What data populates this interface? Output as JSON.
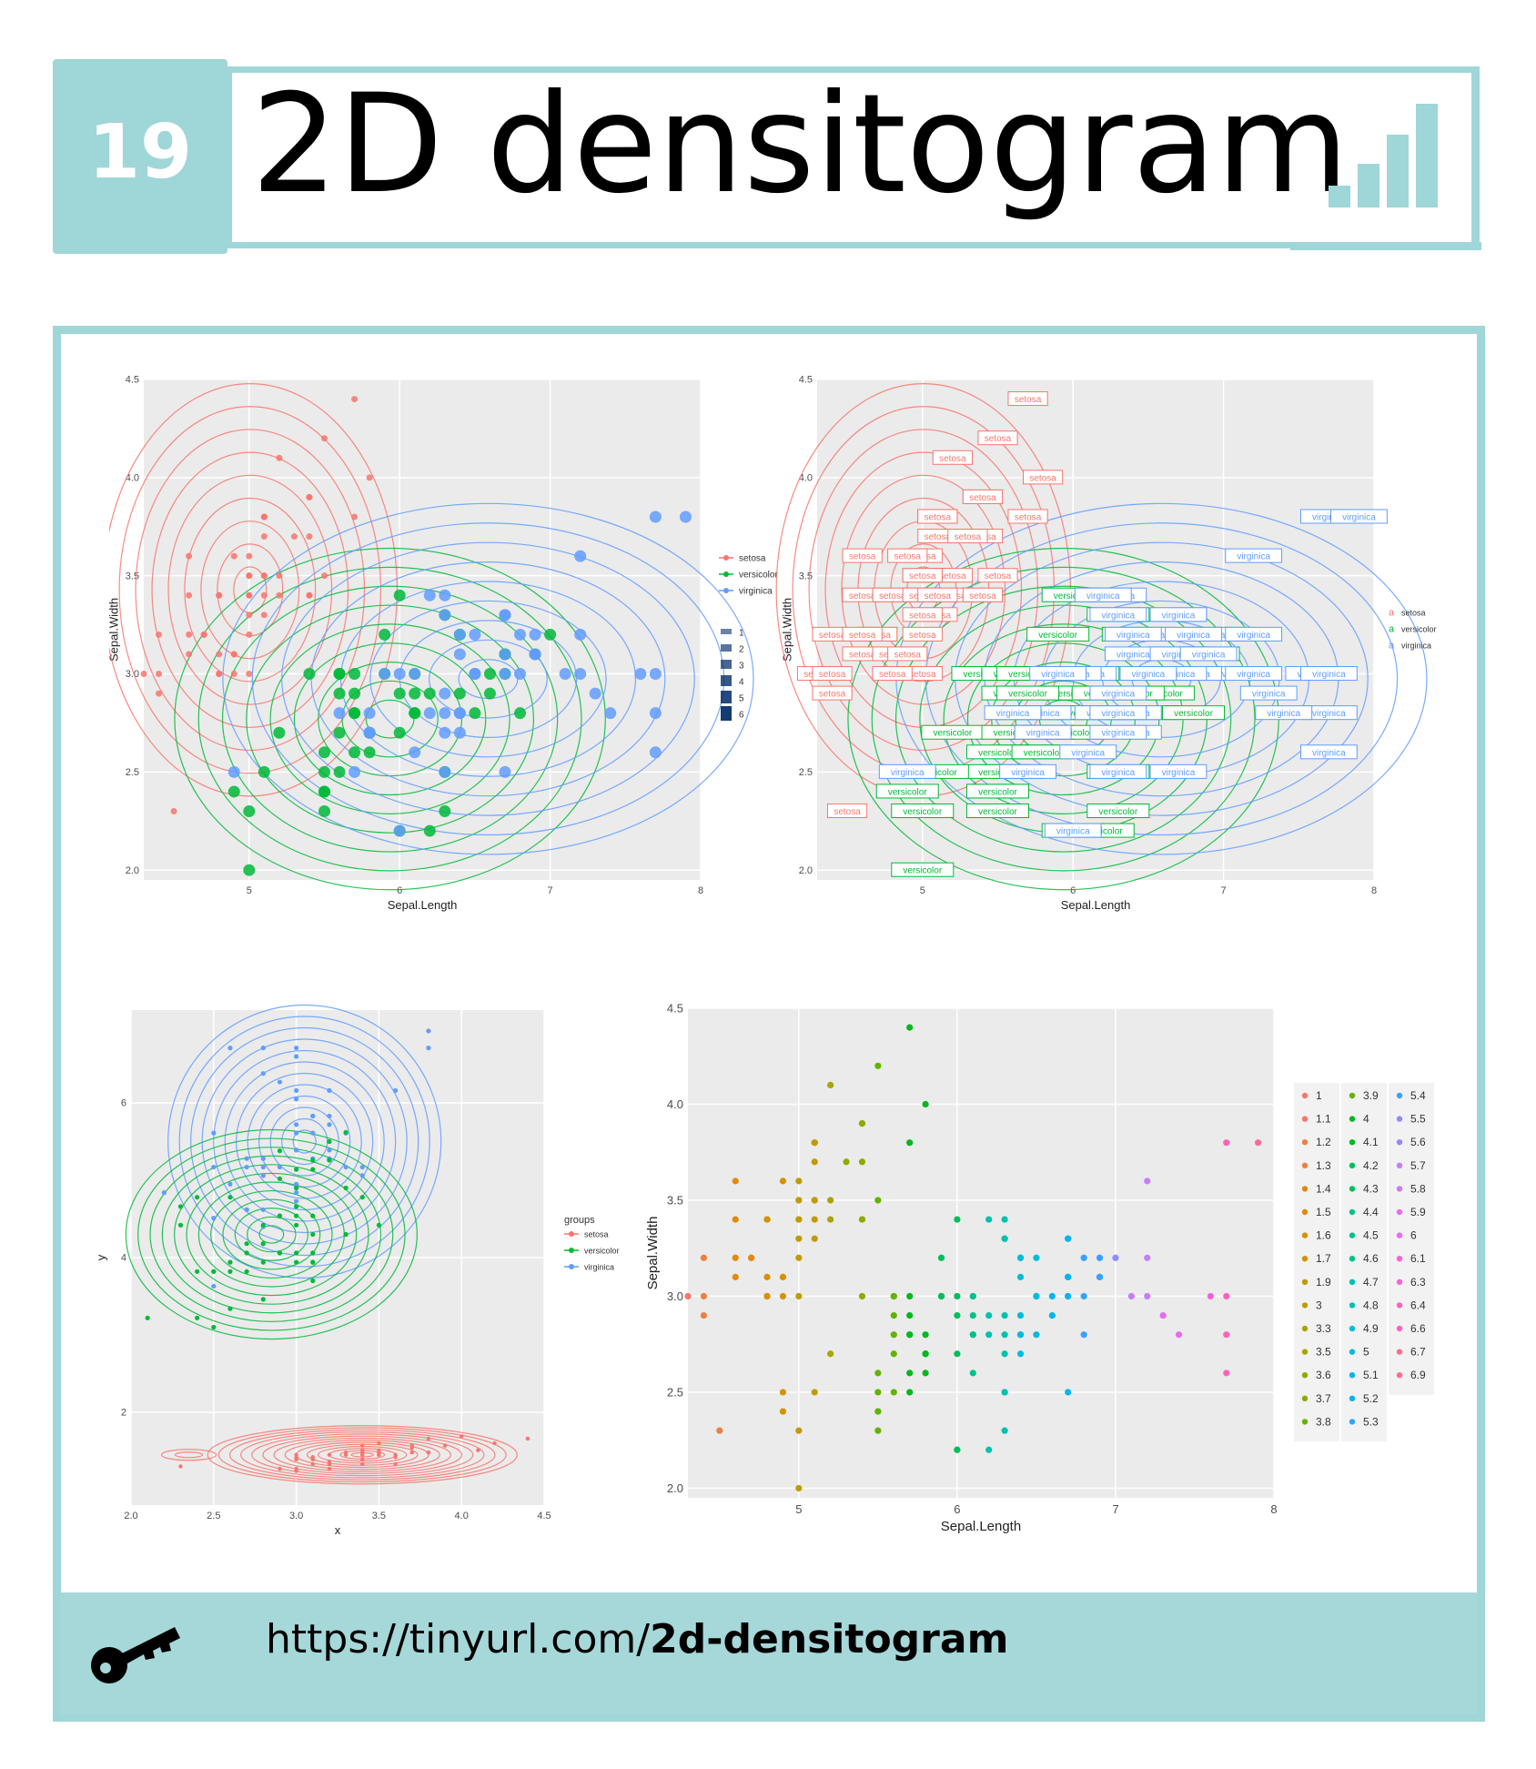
{
  "header": {
    "number": "19",
    "title": "2D densitogram"
  },
  "footer": {
    "url_prefix": "https://tinyurl.com/",
    "url_bold": "2d-densitogram"
  },
  "colors": {
    "accent": "#9fd6d8",
    "panel_bg": "#ebebeb",
    "setosa": "#f8766d",
    "versicolor": "#00ba38",
    "virginica": "#619cff"
  },
  "icons": {
    "header": "bar-chart-icon",
    "footer": "key-icon"
  },
  "chart_data": [
    {
      "type": "scatter",
      "title": "",
      "xlabel": "Sepal.Length",
      "ylabel": "Sepal.Width",
      "xlim": [
        4.3,
        8.0
      ],
      "ylim": [
        1.95,
        4.5
      ],
      "xticks": [
        "5",
        "6",
        "7",
        "8"
      ],
      "yticks": [
        "2.0",
        "2.5",
        "3.0",
        "3.5",
        "4.0",
        "4.5"
      ],
      "xtick_vals": [
        5,
        6,
        7,
        8
      ],
      "ytick_vals": [
        2.0,
        2.5,
        3.0,
        3.5,
        4.0,
        4.5
      ],
      "legend": {
        "position": "right",
        "species_entries": [
          "setosa",
          "versicolor",
          "virginica"
        ],
        "level_entries": [
          "1",
          "2",
          "3",
          "4",
          "5",
          "6"
        ]
      },
      "series": [
        {
          "name": "setosa",
          "x": [
            5.1,
            4.9,
            4.7,
            4.6,
            5.0,
            5.4,
            4.6,
            5.0,
            4.4,
            4.9,
            5.4,
            4.8,
            4.8,
            4.3,
            5.8,
            5.7,
            5.4,
            5.1,
            5.7,
            5.1,
            5.4,
            5.1,
            4.6,
            5.1,
            4.8,
            5.0,
            5.0,
            5.2,
            5.2,
            4.7,
            4.8,
            5.4,
            5.2,
            5.5,
            4.9,
            5.0,
            5.5,
            4.9,
            4.4,
            5.1,
            5.0,
            4.5,
            4.4,
            5.0,
            5.1,
            4.8,
            5.1,
            4.6,
            5.3,
            5.0
          ],
          "y": [
            3.5,
            3.0,
            3.2,
            3.1,
            3.6,
            3.9,
            3.4,
            3.4,
            2.9,
            3.1,
            3.7,
            3.4,
            3.0,
            3.0,
            4.0,
            4.4,
            3.9,
            3.5,
            3.8,
            3.8,
            3.4,
            3.7,
            3.6,
            3.3,
            3.4,
            3.0,
            3.4,
            3.5,
            3.4,
            3.2,
            3.1,
            3.4,
            4.1,
            4.2,
            3.1,
            3.2,
            3.5,
            3.6,
            3.0,
            3.4,
            3.5,
            2.3,
            3.2,
            3.5,
            3.8,
            3.0,
            3.8,
            3.2,
            3.7,
            3.3
          ]
        },
        {
          "name": "versicolor",
          "x": [
            7.0,
            6.4,
            6.9,
            5.5,
            6.5,
            5.7,
            6.3,
            4.9,
            6.6,
            5.2,
            5.0,
            5.9,
            6.0,
            6.1,
            5.6,
            6.7,
            5.6,
            5.8,
            6.2,
            5.6,
            5.9,
            6.1,
            6.3,
            6.1,
            6.4,
            6.6,
            6.8,
            6.7,
            6.0,
            5.7,
            5.5,
            5.5,
            5.8,
            6.0,
            5.4,
            6.0,
            6.7,
            6.3,
            5.6,
            5.5,
            5.5,
            6.1,
            5.8,
            5.0,
            5.6,
            5.7,
            5.7,
            6.2,
            5.1,
            5.7
          ],
          "y": [
            3.2,
            3.2,
            3.1,
            2.3,
            2.8,
            2.8,
            3.3,
            2.4,
            2.9,
            2.7,
            2.0,
            3.0,
            2.2,
            2.9,
            2.9,
            3.1,
            3.0,
            2.7,
            2.2,
            2.5,
            3.2,
            2.8,
            2.5,
            2.8,
            2.9,
            3.0,
            2.8,
            3.0,
            2.9,
            2.6,
            2.4,
            2.4,
            2.7,
            2.7,
            3.0,
            3.4,
            3.1,
            2.3,
            3.0,
            2.5,
            2.6,
            3.0,
            2.6,
            2.3,
            2.7,
            3.0,
            2.9,
            2.9,
            2.5,
            2.8
          ]
        },
        {
          "name": "virginica",
          "x": [
            6.3,
            5.8,
            7.1,
            6.3,
            6.5,
            7.6,
            4.9,
            7.3,
            6.7,
            7.2,
            6.5,
            6.4,
            6.8,
            5.7,
            5.8,
            6.4,
            6.5,
            7.7,
            7.7,
            6.0,
            6.9,
            5.6,
            7.7,
            6.3,
            6.7,
            7.2,
            6.2,
            6.1,
            6.4,
            7.2,
            7.4,
            7.9,
            6.4,
            6.3,
            6.1,
            7.7,
            6.3,
            6.4,
            6.0,
            6.9,
            6.7,
            6.9,
            5.8,
            6.8,
            6.7,
            6.7,
            6.3,
            6.5,
            6.2,
            5.9
          ],
          "y": [
            3.3,
            2.7,
            3.0,
            2.9,
            3.0,
            3.0,
            2.5,
            2.9,
            2.5,
            3.6,
            3.2,
            2.7,
            3.0,
            2.5,
            2.8,
            3.2,
            3.0,
            3.8,
            2.6,
            2.2,
            3.2,
            2.8,
            2.8,
            2.7,
            3.3,
            3.2,
            2.8,
            3.0,
            2.8,
            3.0,
            2.8,
            3.8,
            2.8,
            2.8,
            2.6,
            3.0,
            3.4,
            3.1,
            3.0,
            3.1,
            3.1,
            3.1,
            2.7,
            3.2,
            3.3,
            3.0,
            2.5,
            3.0,
            3.4,
            3.0
          ]
        }
      ]
    },
    {
      "type": "scatter",
      "title": "",
      "xlabel": "Sepal.Length",
      "ylabel": "Sepal.Width",
      "xlim": [
        4.3,
        8.0
      ],
      "ylim": [
        1.95,
        4.5
      ],
      "xticks": [
        "5",
        "6",
        "7",
        "8"
      ],
      "yticks": [
        "2.0",
        "2.5",
        "3.0",
        "3.5",
        "4.0",
        "4.5"
      ],
      "xtick_vals": [
        5,
        6,
        7,
        8
      ],
      "ytick_vals": [
        2.0,
        2.5,
        3.0,
        3.5,
        4.0,
        4.5
      ],
      "point_labels": "species",
      "legend": {
        "position": "right",
        "entries": [
          "setosa",
          "versicolor",
          "virginica"
        ]
      }
    },
    {
      "type": "scatter",
      "title": "",
      "xlabel": "x",
      "ylabel": "y",
      "xlim": [
        2.0,
        4.5
      ],
      "ylim": [
        0.8,
        7.2
      ],
      "xticks": [
        "2.0",
        "2.5",
        "3.0",
        "3.5",
        "4.0",
        "4.5"
      ],
      "yticks": [
        "2",
        "4",
        "6"
      ],
      "xtick_vals": [
        2.0,
        2.5,
        3.0,
        3.5,
        4.0,
        4.5
      ],
      "ytick_vals": [
        2,
        4,
        6
      ],
      "legend": {
        "position": "right",
        "title": "groups",
        "entries": [
          "setosa",
          "versicolor",
          "virginica"
        ]
      }
    },
    {
      "type": "scatter",
      "title": "",
      "xlabel": "Sepal.Length",
      "ylabel": "Sepal.Width",
      "xlim": [
        4.3,
        8.0
      ],
      "ylim": [
        1.95,
        4.5
      ],
      "xticks": [
        "5",
        "6",
        "7",
        "8"
      ],
      "yticks": [
        "2.0",
        "2.5",
        "3.0",
        "3.5",
        "4.0",
        "4.5"
      ],
      "xtick_vals": [
        5,
        6,
        7,
        8
      ],
      "ytick_vals": [
        2.0,
        2.5,
        3.0,
        3.5,
        4.0,
        4.5
      ],
      "legend": {
        "position": "right",
        "columns": [
          [
            "1",
            "1.1",
            "1.2",
            "1.3",
            "1.4",
            "1.5",
            "1.6",
            "1.7",
            "1.9",
            "3",
            "3.3",
            "3.5",
            "3.6",
            "3.7",
            "3.8"
          ],
          [
            "3.9",
            "4",
            "4.1",
            "4.2",
            "4.3",
            "4.4",
            "4.5",
            "4.6",
            "4.7",
            "4.8",
            "4.9",
            "5",
            "5.1",
            "5.2",
            "5.3"
          ],
          [
            "5.4",
            "5.5",
            "5.6",
            "5.7",
            "5.8",
            "5.9",
            "6",
            "6.1",
            "6.3",
            "6.4",
            "6.6",
            "6.7",
            "6.9"
          ]
        ]
      }
    }
  ]
}
